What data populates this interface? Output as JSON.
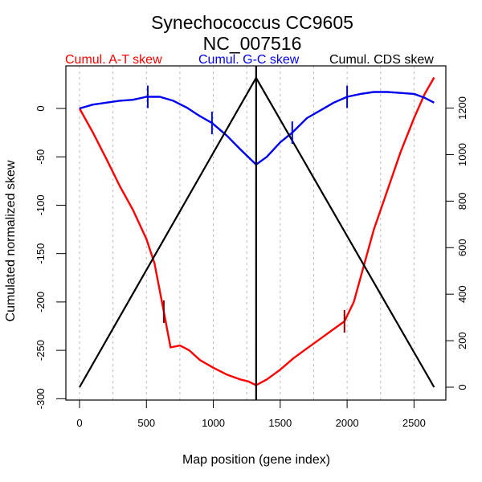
{
  "chart_data": {
    "type": "line",
    "title": "Synechococcus CC9605",
    "subtitle": "NC_007516",
    "xlabel": "Map position (gene index)",
    "ylabel": "Cumulated normalized skew",
    "xlim": [
      0,
      2650
    ],
    "ylim": [
      -300,
      30
    ],
    "y2lim": [
      0,
      1330
    ],
    "x_ticks": [
      0,
      500,
      1000,
      1500,
      2000,
      2500
    ],
    "y_ticks": [
      0,
      -50,
      -100,
      -150,
      -200,
      -250,
      -300
    ],
    "y2_ticks": [
      0,
      200,
      400,
      600,
      800,
      1000,
      1200
    ],
    "grid": {
      "vertical_dotted_every": 250
    },
    "legend": [
      {
        "label": "Cumul. A-T skew",
        "color": "#ff0000",
        "position": "top-left"
      },
      {
        "label": "Cumul. G-C skew",
        "color": "#0000ee",
        "position": "top-center"
      },
      {
        "label": "Cumul. CDS skew",
        "color": "#000000",
        "position": "top-right"
      }
    ],
    "vertical_marker_x": 1320,
    "series": [
      {
        "name": "Cumul. A-T skew",
        "axis": "left",
        "color": "#ff0000",
        "x": [
          0,
          100,
          200,
          300,
          400,
          500,
          560,
          630,
          680,
          750,
          820,
          900,
          1000,
          1100,
          1200,
          1260,
          1320,
          1400,
          1500,
          1600,
          1700,
          1800,
          1900,
          1980,
          2050,
          2120,
          2200,
          2300,
          2400,
          2500,
          2580,
          2650
        ],
        "y": [
          0,
          -25,
          -52,
          -80,
          -105,
          -135,
          -160,
          -210,
          -247,
          -245,
          -250,
          -260,
          -268,
          -275,
          -280,
          -282,
          -286,
          -280,
          -270,
          -258,
          -248,
          -238,
          -228,
          -220,
          -200,
          -165,
          -125,
          -85,
          -45,
          -10,
          15,
          32
        ]
      },
      {
        "name": "Cumul. G-C skew",
        "axis": "left",
        "color": "#0000ee",
        "x": [
          0,
          100,
          200,
          300,
          400,
          500,
          600,
          700,
          800,
          900,
          990,
          1100,
          1200,
          1320,
          1400,
          1500,
          1590,
          1700,
          1800,
          1900,
          2000,
          2100,
          2200,
          2300,
          2400,
          2500,
          2580,
          2650
        ],
        "y": [
          0,
          4,
          6,
          8,
          9,
          12,
          12,
          8,
          1,
          -8,
          -15,
          -28,
          -42,
          -58,
          -50,
          -35,
          -25,
          -10,
          -2,
          6,
          12,
          15,
          17,
          17,
          16,
          15,
          11,
          6
        ]
      },
      {
        "name": "Cumul. CDS skew",
        "axis": "right",
        "color": "#000000",
        "x": [
          0,
          1320,
          2650
        ],
        "y": [
          0,
          1330,
          0
        ]
      }
    ],
    "origin_markers": [
      {
        "series": "Cumul. A-T skew",
        "x": 630,
        "y": -210
      },
      {
        "series": "Cumul. A-T skew",
        "x": 1980,
        "y": -220
      },
      {
        "series": "Cumul. G-C skew",
        "x": 510,
        "y": 12
      },
      {
        "series": "Cumul. G-C skew",
        "x": 990,
        "y": -15
      },
      {
        "series": "Cumul. G-C skew",
        "x": 1590,
        "y": -25
      },
      {
        "series": "Cumul. G-C skew",
        "x": 2000,
        "y": 12
      }
    ]
  }
}
